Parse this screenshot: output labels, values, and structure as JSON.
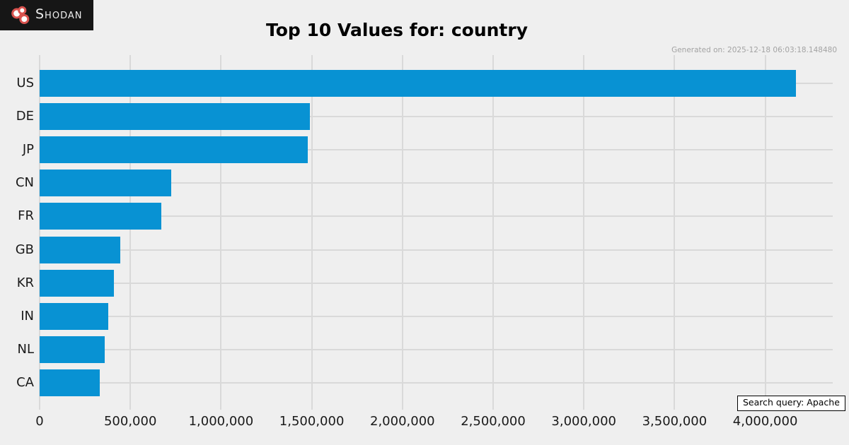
{
  "brand": {
    "name": "Shodan",
    "logo_icon": "shodan-circles-icon",
    "colors": {
      "logo_background": "#161616",
      "logo_text": "#ededed",
      "circle_ring": "#d9534f",
      "circle_fill": "#ffffff"
    }
  },
  "header": {
    "title": "Top 10 Values for: country",
    "generated_on": "Generated on: 2025-12-18 06:03:18.148480"
  },
  "footer": {
    "search_query": "Search query: Apache"
  },
  "chart_data": {
    "type": "bar",
    "orientation": "horizontal",
    "title": "Top 10 Values for: country",
    "categories": [
      "US",
      "DE",
      "JP",
      "CN",
      "FR",
      "GB",
      "KR",
      "IN",
      "NL",
      "CA"
    ],
    "values": [
      4170000,
      1490000,
      1480000,
      725000,
      670000,
      445000,
      410000,
      380000,
      360000,
      330000
    ],
    "xlabel": "",
    "ylabel": "",
    "xlim": [
      0,
      4372000
    ],
    "x_ticks": [
      0,
      500000,
      1000000,
      1500000,
      2000000,
      2500000,
      3000000,
      3500000,
      4000000
    ],
    "x_tick_labels": [
      "0",
      "500,000",
      "1,000,000",
      "1,500,000",
      "2,000,000",
      "2,500,000",
      "3,000,000",
      "3,500,000",
      "4,000,000"
    ],
    "grid": true,
    "legend": false,
    "bar_color": "#0892d3",
    "plot_background": "#efefef",
    "gridline_color": "#d9d9d9"
  }
}
